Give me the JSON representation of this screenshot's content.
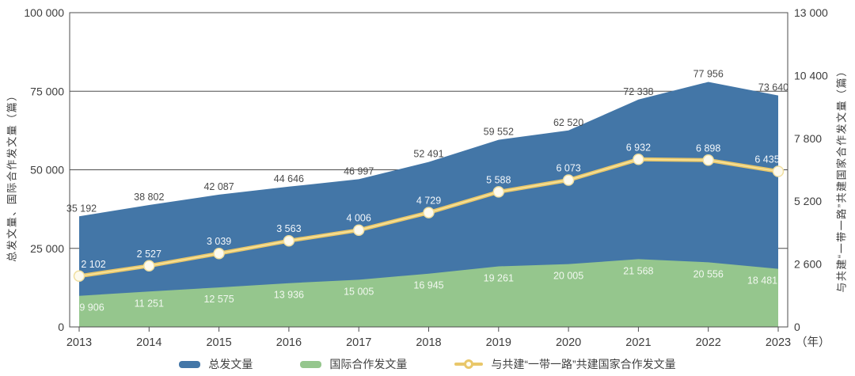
{
  "chart_data": {
    "type": "area",
    "title": "",
    "categories": [
      "2013",
      "2014",
      "2015",
      "2016",
      "2017",
      "2018",
      "2019",
      "2020",
      "2021",
      "2022",
      "2023"
    ],
    "x_unit_label": "（年）",
    "left_axis": {
      "title": "总发文量、国际合作发文量（篇）",
      "ticks": [
        0,
        25000,
        50000,
        75000,
        100000
      ],
      "min": 0,
      "max": 100000,
      "grid": true
    },
    "right_axis": {
      "title": "与共建“一带一路”共建国家合作发文量（篇）",
      "ticks": [
        0,
        2600,
        5200,
        7800,
        10400,
        13000
      ],
      "min": 0,
      "max": 13000,
      "grid": false
    },
    "legend_position": "bottom",
    "series": [
      {
        "name": "总发文量",
        "type": "area",
        "axis": "left",
        "color": "#4376a7",
        "label_color": "#4a4a4a",
        "values": [
          35192,
          38802,
          42087,
          44646,
          46997,
          52491,
          59552,
          62520,
          72338,
          77956,
          73640
        ]
      },
      {
        "name": "国际合作发文量",
        "type": "area",
        "axis": "left",
        "color": "#95c68d",
        "label_color": "#f2f8f0",
        "values": [
          9906,
          11251,
          12575,
          13936,
          15005,
          16945,
          19261,
          20005,
          21568,
          20556,
          18481
        ]
      },
      {
        "name": "与共建“一带一路”共建国家合作发文量",
        "type": "line",
        "axis": "right",
        "color": "#e9c76a",
        "line_core_color": "#f7e39c",
        "marker_fill": "#fdfaee",
        "marker_stroke": "#f0dfa0",
        "label_color": "#f3f7fb",
        "values": [
          2102,
          2527,
          3039,
          3563,
          4006,
          4729,
          5588,
          6073,
          6932,
          6898,
          6435
        ]
      }
    ],
    "style": {
      "grid_color": "#4d4d4d",
      "tick_text_color": "#3d3d3d"
    }
  }
}
